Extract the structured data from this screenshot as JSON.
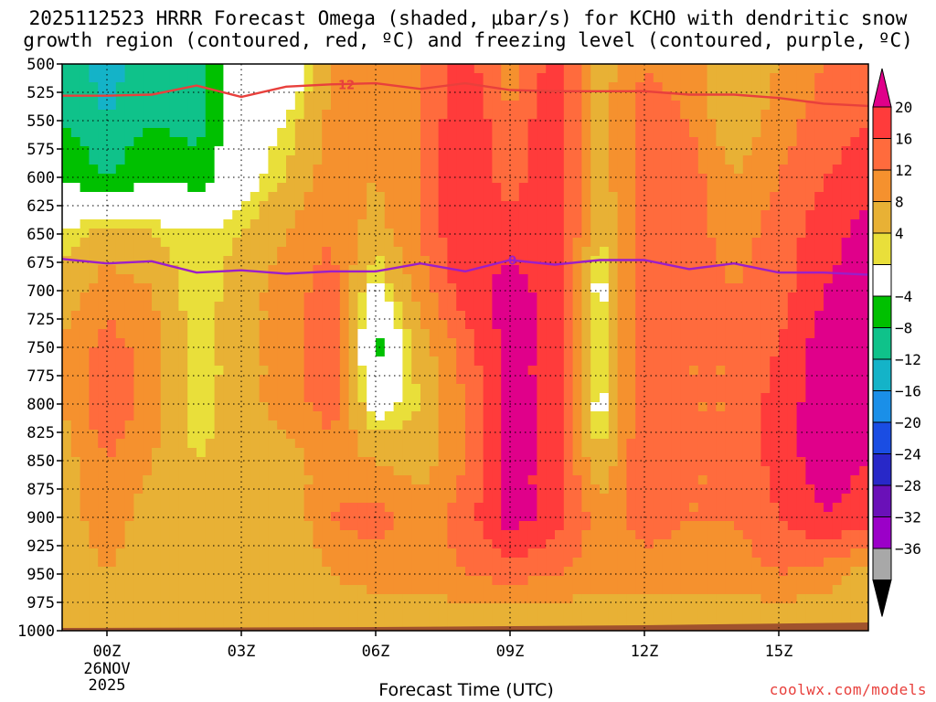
{
  "title": {
    "line1": "2025112523 HRRR Forecast Omega (shaded, μbar/s) for KCHO with dendritic snow",
    "line2": "growth region (contoured, red, ºC) and freezing level (contoured, purple, ºC)"
  },
  "credit": "coolwx.com/models",
  "chart_data": {
    "type": "heatmap",
    "title": "2025112523 HRRR Forecast Omega (shaded, μbar/s) for KCHO with dendritic snow growth region (contoured, red, ºC) and freezing level (contoured, purple, ºC)",
    "xlabel": "Forecast Time (UTC)",
    "ylabel": "",
    "x_range_hours": [
      -1,
      17
    ],
    "y_range_hPa": [
      1000,
      500
    ],
    "x_ticks": [
      {
        "hour": 0,
        "label": "00Z",
        "sub1": "26NOV",
        "sub2": "2025"
      },
      {
        "hour": 3,
        "label": "03Z"
      },
      {
        "hour": 6,
        "label": "06Z"
      },
      {
        "hour": 9,
        "label": "09Z"
      },
      {
        "hour": 12,
        "label": "12Z"
      },
      {
        "hour": 15,
        "label": "15Z"
      }
    ],
    "y_ticks": [
      500,
      525,
      550,
      575,
      600,
      625,
      650,
      675,
      700,
      725,
      750,
      775,
      800,
      825,
      850,
      875,
      900,
      925,
      950,
      975,
      1000
    ],
    "colorbar": {
      "levels": [
        "20",
        "16",
        "12",
        "8",
        "4",
        "−4",
        "−8",
        "−12",
        "−16",
        "−20",
        "−24",
        "−28",
        "−32",
        "−36"
      ],
      "colors": [
        "#e0008a",
        "#ff3b3b",
        "#ff6b3d",
        "#f5912e",
        "#e8b135",
        "#e9df3a",
        "#ffffff",
        "#00c000",
        "#0fc28a",
        "#14b3c8",
        "#1a8fe8",
        "#1a4de3",
        "#2828c8",
        "#6a10b8",
        "#9b00c8",
        "#a8a8a8",
        "#000000"
      ]
    },
    "omega_field": {
      "hours": [
        -1,
        0,
        1,
        2,
        3,
        4,
        5,
        6,
        7,
        8,
        9,
        10,
        11,
        12,
        13,
        14,
        15,
        16,
        17
      ],
      "pressure_levels_hPa": [
        500,
        550,
        600,
        650,
        700,
        750,
        800,
        850,
        900,
        950,
        1000
      ],
      "values_ubar_s": [
        [
          -10,
          -14,
          -9,
          -11,
          0,
          -3,
          8,
          10,
          12,
          18,
          10,
          18,
          6,
          12,
          10,
          4,
          8,
          12,
          14
        ],
        [
          -8,
          -12,
          -8,
          -10,
          0,
          2,
          9,
          9,
          12,
          20,
          12,
          20,
          6,
          14,
          12,
          4,
          10,
          14,
          16
        ],
        [
          -4,
          -8,
          -4,
          -6,
          0,
          4,
          10,
          8,
          12,
          20,
          14,
          20,
          6,
          14,
          14,
          8,
          12,
          16,
          18
        ],
        [
          2,
          6,
          4,
          2,
          4,
          8,
          12,
          6,
          12,
          20,
          18,
          20,
          4,
          14,
          14,
          10,
          14,
          18,
          22
        ],
        [
          6,
          10,
          8,
          2,
          6,
          10,
          14,
          0,
          10,
          18,
          22,
          18,
          0,
          16,
          14,
          12,
          14,
          20,
          22
        ],
        [
          8,
          14,
          10,
          2,
          6,
          10,
          16,
          -6,
          6,
          14,
          22,
          18,
          2,
          16,
          12,
          12,
          16,
          22,
          22
        ],
        [
          8,
          16,
          10,
          2,
          6,
          10,
          14,
          0,
          4,
          12,
          22,
          18,
          0,
          16,
          12,
          12,
          18,
          22,
          22
        ],
        [
          6,
          12,
          8,
          4,
          6,
          6,
          10,
          8,
          6,
          12,
          22,
          18,
          4,
          16,
          12,
          12,
          18,
          22,
          20
        ],
        [
          6,
          10,
          6,
          6,
          8,
          4,
          12,
          14,
          10,
          14,
          22,
          18,
          10,
          14,
          12,
          12,
          16,
          20,
          18
        ],
        [
          6,
          8,
          6,
          6,
          6,
          4,
          8,
          10,
          10,
          12,
          14,
          12,
          10,
          10,
          10,
          10,
          12,
          10,
          6
        ],
        [
          4,
          4,
          4,
          4,
          4,
          4,
          4,
          4,
          4,
          4,
          4,
          4,
          4,
          4,
          4,
          4,
          4,
          4,
          4
        ]
      ]
    },
    "series": [
      {
        "name": "dendritic snow growth region (-12 ºC)",
        "label": "12",
        "color": "#e8403c",
        "hours": [
          -1,
          0,
          1,
          2,
          3,
          4,
          5,
          6,
          7,
          8,
          9,
          10,
          11,
          12,
          13,
          14,
          15,
          16,
          17
        ],
        "pressure_hPa": [
          528,
          528,
          527,
          519,
          529,
          520,
          518,
          517,
          522,
          517,
          523,
          524,
          524,
          524,
          527,
          527,
          530,
          535,
          537
        ]
      },
      {
        "name": "freezing level (0 ºC)",
        "label": "0",
        "color": "#9c1ec8",
        "hours": [
          -1,
          0,
          1,
          2,
          3,
          4,
          5,
          6,
          7,
          8,
          9,
          10,
          11,
          12,
          13,
          14,
          15,
          16,
          17
        ],
        "pressure_hPa": [
          672,
          676,
          674,
          684,
          682,
          685,
          683,
          683,
          676,
          683,
          673,
          677,
          673,
          673,
          681,
          676,
          684,
          684,
          686
        ]
      }
    ],
    "ground_band": {
      "label": "surface/terrain",
      "color": "#a0522d"
    }
  }
}
